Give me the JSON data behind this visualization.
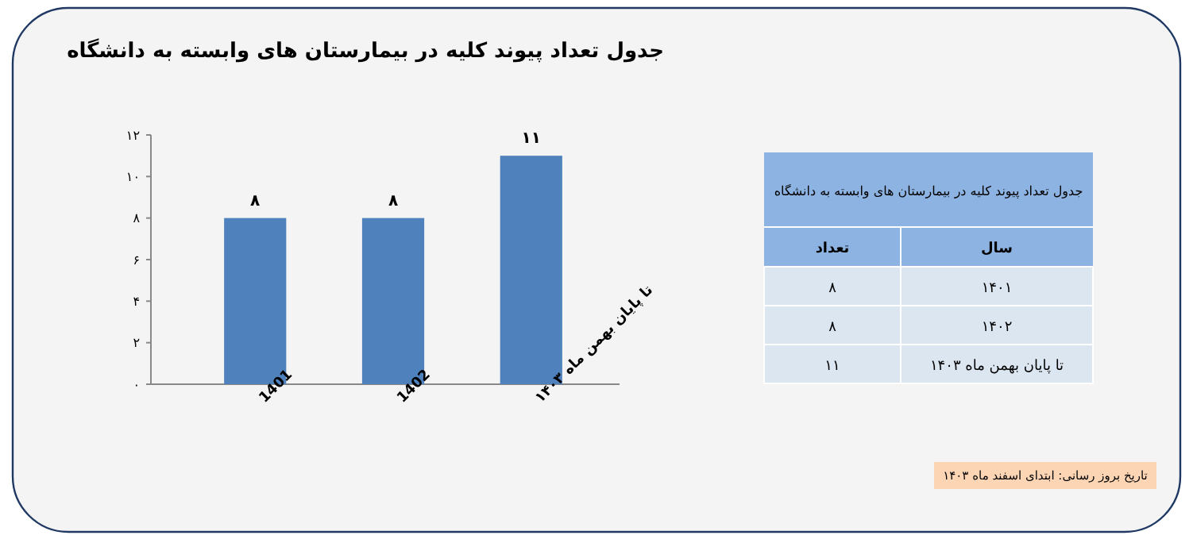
{
  "chart_data": {
    "type": "bar",
    "title": "جدول تعداد پیوند کلیه در بیمارستان های وابسته به دانشگاه",
    "categories": [
      "1401",
      "1402",
      "تا پایان بهمن ماه ۱۴۰۳"
    ],
    "values": [
      8,
      8,
      11
    ],
    "color": "#4f81bd",
    "value_labels": [
      "۸",
      "۸",
      "۱۱"
    ],
    "ylim": [
      0,
      12
    ],
    "yticks": [
      {
        "value": 0,
        "label": "۰"
      },
      {
        "value": 2,
        "label": "۲"
      },
      {
        "value": 4,
        "label": "۴"
      },
      {
        "value": 6,
        "label": "۶"
      },
      {
        "value": 8,
        "label": "۸"
      },
      {
        "value": 10,
        "label": "۱۰"
      },
      {
        "value": 12,
        "label": "۱۲"
      }
    ],
    "grid": false,
    "annotations": [
      "جدول تعداد پیوند کلیه در بیمارستان های وابسته به دانشگاه",
      "تعداد",
      "سال",
      "۱۴۰۱",
      "۱۴۰۲",
      "تا پایان بهمن ماه ۱۴۰۳",
      "تاریخ بروز رسانی: ابتدای اسفند ماه ۱۴۰۳"
    ]
  }
}
